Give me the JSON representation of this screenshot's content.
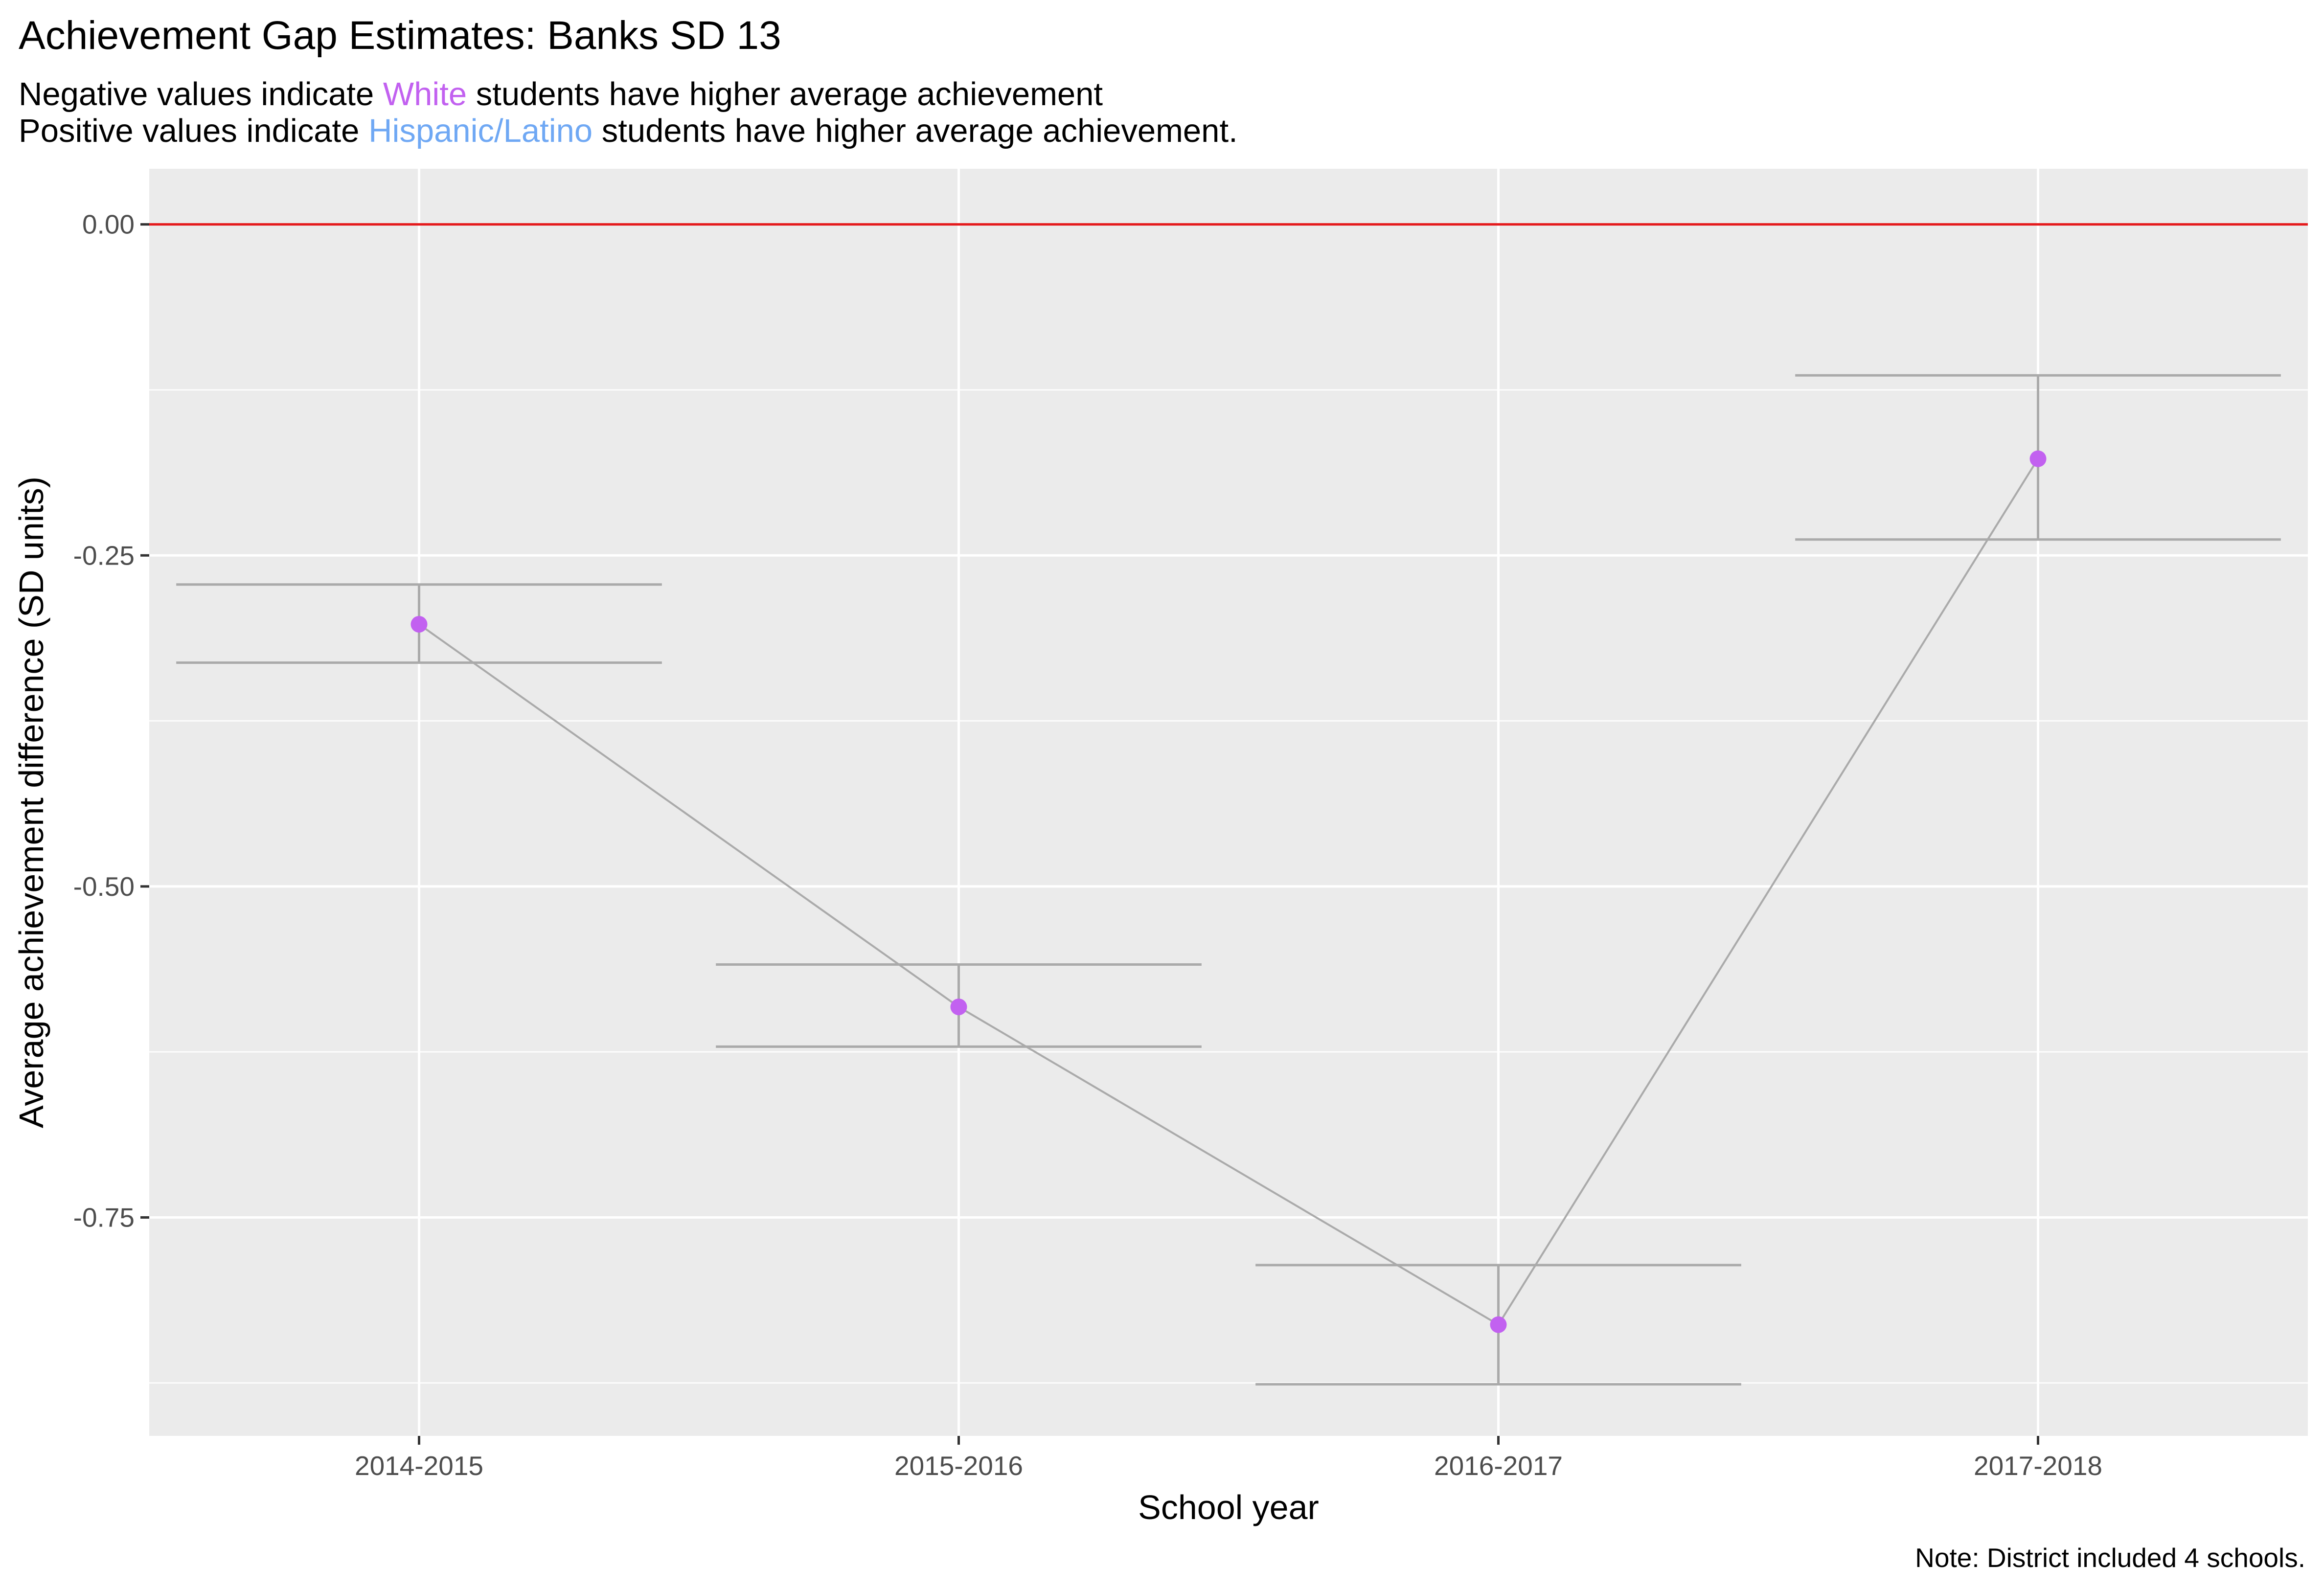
{
  "title": "Achievement Gap Estimates: Banks SD 13",
  "subtitle": {
    "line1": {
      "before": "Negative values indicate ",
      "highlight": "White",
      "after": " students have higher average achievement",
      "highlight_color": "#c261f0"
    },
    "line2": {
      "before": "Positive values indicate ",
      "highlight": "Hispanic/Latino",
      "after": " students have higher average achievement.",
      "highlight_color": "#6fa8f4"
    }
  },
  "caption": "Note: District included 4 schools.",
  "colors": {
    "panel": "#ebebeb",
    "grid": "#ffffff",
    "zero_line": "#e41a1c",
    "series_line": "#aaaaaa",
    "errorbar": "#aaaaaa",
    "point": "#c261f0"
  },
  "chart_data": {
    "type": "line",
    "xlabel": "School year",
    "ylabel": "Average achievement difference (SD units)",
    "categories": [
      "2014-2015",
      "2015-2016",
      "2016-2017",
      "2017-2018"
    ],
    "ylim": [
      -0.915,
      0.042
    ],
    "y_ticks": [
      0.0,
      -0.25,
      -0.5,
      -0.75
    ],
    "y_tick_labels": [
      "0.00",
      "-0.25",
      "-0.50",
      "-0.75"
    ],
    "reference_line": 0.0,
    "grid": true,
    "series": [
      {
        "values": [
          -0.302,
          -0.591,
          -0.831,
          -0.177
        ],
        "lower": [
          -0.331,
          -0.621,
          -0.876,
          -0.238
        ],
        "upper": [
          -0.272,
          -0.559,
          -0.786,
          -0.114
        ]
      }
    ]
  }
}
